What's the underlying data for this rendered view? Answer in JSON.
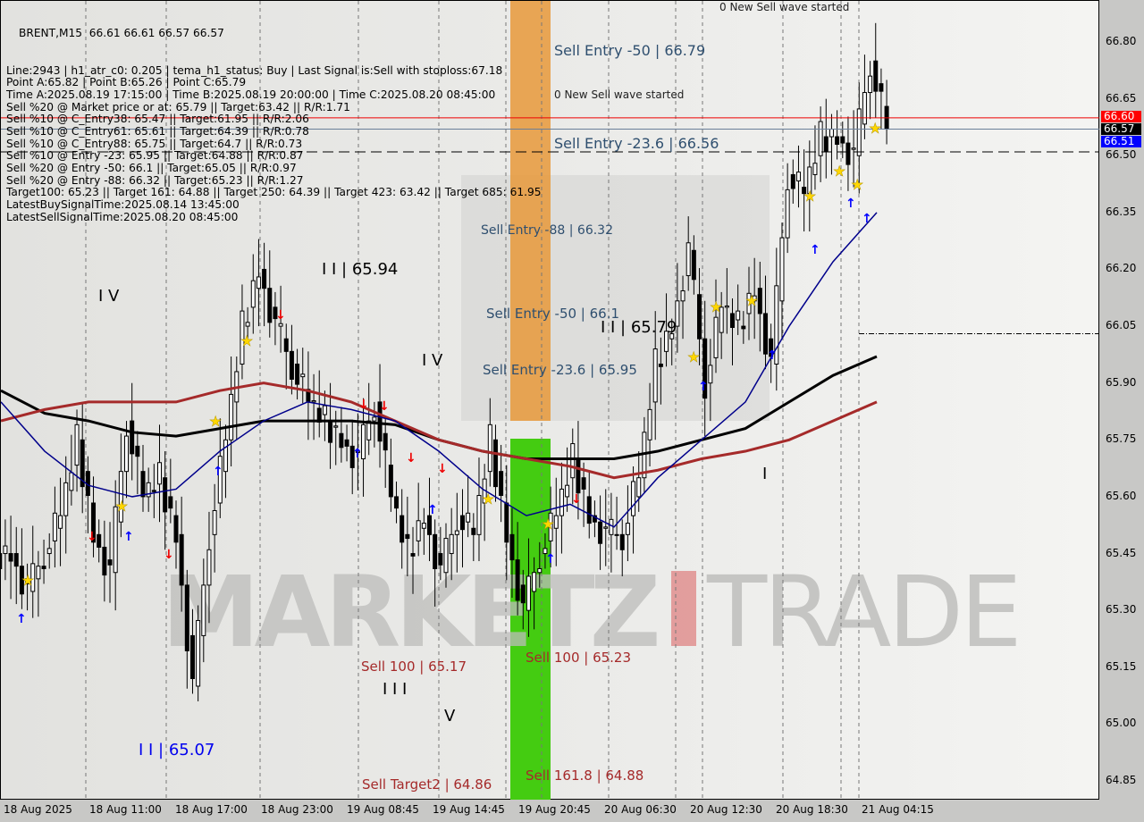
{
  "header": {
    "symbol_line": "BRENT,M15  66.61 66.61 66.57 66.57",
    "info_lines": [
      "Line:2943 | h1_atr_c0: 0.205 | tema_h1_status: Buy | Last Signal is:Sell with stoploss:67.18",
      "Point A:65.82 | Point B:65.26 | Point C:65.79",
      "Time A:2025.08.19 17:15:00 | Time B:2025.08.19 20:00:00 | Time C:2025.08.20 08:45:00",
      "Sell %20 @ Market price or at: 65.79 || Target:63.42 || R/R:1.71",
      "Sell %10 @ C_Entry38: 65.47 || Target:61.95 || R/R:2.06",
      "Sell %10 @ C_Entry61: 65.61 || Target:64.39 || R/R:0.78",
      "Sell %10 @ C_Entry88: 65.75 || Target:64.7 || R/R:0.73",
      "Sell %10 @ Entry -23: 65.95 || Target:64.88 || R/R:0.87",
      "Sell %20 @ Entry -50: 66.1 || Target:65.05 || R/R:0.97",
      "Sell %20 @ Entry -88: 66.32 || Target:65.23 || R/R:1.27",
      "Target100: 65.23 || Target 161: 64.88 || Target 250: 64.39 || Target 423: 63.42 || Target 685: 61.95",
      "LatestBuySignalTime:2025.08.14 13:45:00",
      "LatestSellSignalTime:2025.08.20 08:45:00"
    ]
  },
  "annotations": {
    "new_wave_1": "0 New Sell wave started",
    "new_wave_2": "0 New Sell wave started",
    "sell_entry_50_top": "Sell Entry -50 | 66.79",
    "sell_entry_236_top": "Sell Entry -23.6 | 66.56",
    "sell_entry_88": "Sell Entry -88 | 66.32",
    "sell_entry_50": "Sell Entry -50 | 66.1",
    "sell_entry_236": "Sell Entry -23.6 | 65.95",
    "wave_ii_6579": "I I | 65.79",
    "wave_ii_6594": "I I | 65.94",
    "wave_iv_1": "I V",
    "wave_iv_2": "I V",
    "wave_i": "I",
    "wave_iii": "I I I",
    "wave_v": "V",
    "wave_ii_6507": "I I | 65.07",
    "sell_100_6523": "Sell 100 | 65.23",
    "sell_100_6517": "Sell 100 | 65.17",
    "sell_target2": "Sell Target2 | 64.86",
    "sell_1618": "Sell 161.8 | 64.88",
    "watermark": "MARKETZ TRADE"
  },
  "price_badges": {
    "red": "66.60",
    "black": "66.57",
    "blue": "66.51"
  },
  "colors": {
    "ma_black": "#000000",
    "ma_red": "#a52a2a",
    "ma_blue": "#00008b",
    "zone_orange": "#e8993a",
    "zone_green": "#44cc11",
    "sell_label": "#a52a2a",
    "entry_label": "#2f4f6f"
  },
  "chart_data": {
    "type": "candlestick",
    "ylim": [
      64.8,
      66.9
    ],
    "y_ticks": [
      "66.80",
      "66.65",
      "66.50",
      "66.35",
      "66.20",
      "66.05",
      "65.90",
      "65.75",
      "65.60",
      "65.45",
      "65.30",
      "65.15",
      "65.00",
      "64.85"
    ],
    "x_ticks": [
      "18 Aug 2025",
      "18 Aug 11:00",
      "18 Aug 17:00",
      "18 Aug 23:00",
      "19 Aug 08:45",
      "19 Aug 14:45",
      "19 Aug 20:45",
      "20 Aug 06:30",
      "20 Aug 12:30",
      "20 Aug 18:30",
      "21 Aug 04:15"
    ],
    "close": [
      65.45,
      65.35,
      65.45,
      65.55,
      65.75,
      65.5,
      65.4,
      65.8,
      65.6,
      65.65,
      65.5,
      65.1,
      65.5,
      65.75,
      66.05,
      66.2,
      66.05,
      65.95,
      65.85,
      65.8,
      65.75,
      65.7,
      65.85,
      65.6,
      65.45,
      65.55,
      65.4,
      65.55,
      65.5,
      65.75,
      65.5,
      65.3,
      65.45,
      65.55,
      65.7,
      65.55,
      65.5,
      65.5,
      65.65,
      65.95,
      66.05,
      66.25,
      65.9,
      66.1,
      66.05,
      66.15,
      65.95,
      66.45,
      66.4,
      66.55,
      66.55,
      66.5,
      66.75,
      66.57
    ],
    "ma_black": [
      65.88,
      65.82,
      65.8,
      65.77,
      65.76,
      65.78,
      65.8,
      65.8,
      65.8,
      65.79,
      65.75,
      65.72,
      65.7,
      65.7,
      65.7,
      65.72,
      65.75,
      65.78,
      65.85,
      65.92,
      65.97
    ],
    "ma_red": [
      65.8,
      65.83,
      65.85,
      65.85,
      65.85,
      65.88,
      65.9,
      65.88,
      65.85,
      65.8,
      65.75,
      65.72,
      65.7,
      65.68,
      65.65,
      65.67,
      65.7,
      65.72,
      65.75,
      65.8,
      65.85
    ],
    "ma_blue": [
      65.85,
      65.72,
      65.63,
      65.6,
      65.62,
      65.72,
      65.8,
      65.85,
      65.83,
      65.8,
      65.72,
      65.62,
      65.55,
      65.58,
      65.52,
      65.65,
      65.75,
      65.85,
      66.05,
      66.22,
      66.35
    ],
    "hlines": [
      66.6,
      66.57,
      66.51,
      66.03
    ]
  }
}
